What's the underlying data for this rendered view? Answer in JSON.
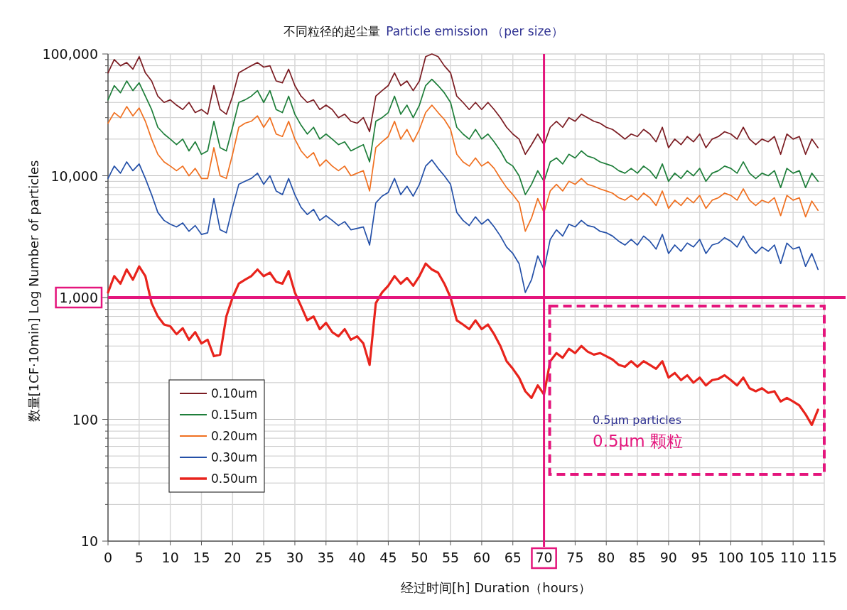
{
  "chart_data": {
    "type": "line",
    "title": "不同粒径的起尘量",
    "subtitle": "Particle emission （per size）",
    "xlabel": "经过时间[h] Duration（hours）",
    "ylabel": "数量[1CF·10min] Log Number of particles",
    "log": "y",
    "grid": true,
    "legend": "bottom left",
    "marker": "none",
    "line_style": "solid",
    "xlim": [
      0,
      115
    ],
    "xticks": [
      0,
      5,
      10,
      15,
      20,
      25,
      30,
      35,
      40,
      45,
      50,
      55,
      60,
      65,
      70,
      75,
      80,
      85,
      90,
      95,
      100,
      105,
      110,
      115
    ],
    "ylim": [
      10,
      100000
    ],
    "yticks": [
      10,
      100,
      {
        "value": 1000,
        "label": "1,000"
      },
      {
        "value": 10000,
        "label": "10,000"
      },
      {
        "value": 100000,
        "label": "100,000"
      }
    ],
    "x": [
      0,
      1,
      2,
      3,
      4,
      5,
      6,
      7,
      8,
      9,
      10,
      11,
      12,
      13,
      14,
      15,
      16,
      17,
      18,
      19,
      20,
      21,
      22,
      23,
      24,
      25,
      26,
      27,
      28,
      29,
      30,
      31,
      32,
      33,
      34,
      35,
      36,
      37,
      38,
      39,
      40,
      41,
      42,
      43,
      44,
      45,
      46,
      47,
      48,
      49,
      50,
      51,
      52,
      53,
      54,
      55,
      56,
      57,
      58,
      59,
      60,
      61,
      62,
      63,
      64,
      65,
      66,
      67,
      68,
      69,
      70,
      71,
      72,
      73,
      74,
      75,
      76,
      77,
      78,
      79,
      80,
      81,
      82,
      83,
      84,
      85,
      86,
      87,
      88,
      89,
      90,
      91,
      92,
      93,
      94,
      95,
      96,
      97,
      98,
      99,
      100,
      101,
      102,
      103,
      104,
      105,
      106,
      107,
      108,
      109,
      110,
      111,
      112,
      113,
      114
    ],
    "series": [
      {
        "name": "0.10um",
        "color": "#7b1c22",
        "values": [
          70000,
          90000,
          80000,
          85000,
          75000,
          95000,
          70000,
          60000,
          45000,
          40000,
          42000,
          38000,
          35000,
          40000,
          33000,
          35000,
          32000,
          55000,
          35000,
          32000,
          45000,
          70000,
          75000,
          80000,
          85000,
          78000,
          80000,
          60000,
          58000,
          75000,
          55000,
          45000,
          40000,
          42000,
          35000,
          38000,
          35000,
          30000,
          32000,
          28000,
          27000,
          30000,
          23000,
          45000,
          50000,
          55000,
          70000,
          55000,
          60000,
          50000,
          60000,
          95000,
          100000,
          95000,
          80000,
          70000,
          45000,
          40000,
          35000,
          40000,
          35000,
          40000,
          35000,
          30000,
          25000,
          22000,
          20000,
          15000,
          18000,
          22000,
          18000,
          25000,
          28000,
          25000,
          30000,
          28000,
          32000,
          30000,
          28000,
          27000,
          25000,
          24000,
          22000,
          20000,
          22000,
          21000,
          24000,
          22000,
          19000,
          25000,
          17000,
          20000,
          18000,
          21000,
          19000,
          22000,
          17000,
          20000,
          21000,
          23000,
          22000,
          20000,
          25000,
          20000,
          18000,
          20000,
          19000,
          21000,
          15000,
          22000,
          20000,
          21000,
          15000,
          20000,
          17000
        ]
      },
      {
        "name": "0.15um",
        "color": "#1e7e3a",
        "values": [
          42000,
          55000,
          48000,
          60000,
          50000,
          58000,
          45000,
          35000,
          25000,
          22000,
          20000,
          18000,
          20000,
          16000,
          19000,
          15000,
          16000,
          28000,
          17000,
          16000,
          25000,
          40000,
          42000,
          45000,
          50000,
          40000,
          50000,
          35000,
          33000,
          45000,
          32000,
          26000,
          22000,
          25000,
          20000,
          22000,
          20000,
          18000,
          19000,
          16000,
          17000,
          18000,
          13000,
          28000,
          30000,
          33000,
          45000,
          32000,
          38000,
          30000,
          38000,
          55000,
          62000,
          55000,
          48000,
          40000,
          25000,
          22000,
          20000,
          24000,
          20000,
          22000,
          19000,
          16000,
          13000,
          12000,
          10000,
          7000,
          8500,
          11000,
          9000,
          13000,
          14000,
          12500,
          15000,
          14000,
          16000,
          14500,
          14000,
          13000,
          12500,
          12000,
          11000,
          10500,
          11500,
          10500,
          12000,
          11000,
          9500,
          12500,
          9000,
          10500,
          9500,
          11000,
          10000,
          11500,
          9000,
          10500,
          11000,
          12000,
          11500,
          10500,
          13000,
          10500,
          9500,
          10500,
          10000,
          11000,
          8000,
          11500,
          10500,
          11000,
          8000,
          10500,
          9000
        ]
      },
      {
        "name": "0.20um",
        "color": "#f07020",
        "values": [
          27000,
          33000,
          30000,
          37000,
          31000,
          36000,
          28000,
          20000,
          15000,
          13000,
          12000,
          11000,
          12000,
          10000,
          11500,
          9500,
          9500,
          17000,
          10000,
          9500,
          15000,
          25000,
          27000,
          28000,
          31000,
          25000,
          30000,
          22000,
          21000,
          28000,
          20000,
          16000,
          14000,
          15500,
          12000,
          13500,
          12000,
          11000,
          12000,
          10000,
          10500,
          11000,
          7500,
          17000,
          19000,
          21000,
          28000,
          20000,
          24000,
          19000,
          24000,
          33000,
          38000,
          33000,
          29000,
          24000,
          15000,
          13000,
          12000,
          14000,
          12000,
          13000,
          11500,
          9500,
          8000,
          7000,
          6000,
          3500,
          4500,
          6500,
          5000,
          7500,
          8500,
          7500,
          9000,
          8500,
          9500,
          8500,
          8200,
          7800,
          7500,
          7200,
          6600,
          6300,
          6900,
          6300,
          7200,
          6600,
          5700,
          7500,
          5400,
          6300,
          5700,
          6600,
          6000,
          6900,
          5400,
          6300,
          6600,
          7200,
          6900,
          6300,
          7800,
          6300,
          5700,
          6300,
          6000,
          6600,
          4700,
          6900,
          6300,
          6600,
          4600,
          6200,
          5200
        ]
      },
      {
        "name": "0.30um",
        "color": "#2450a8",
        "values": [
          9500,
          12000,
          10500,
          13000,
          11000,
          12500,
          9500,
          7000,
          5000,
          4300,
          4000,
          3800,
          4100,
          3500,
          3900,
          3300,
          3400,
          6500,
          3600,
          3400,
          5500,
          8500,
          9000,
          9500,
          10500,
          8500,
          10000,
          7500,
          7000,
          9500,
          7000,
          5500,
          4800,
          5300,
          4300,
          4700,
          4300,
          3900,
          4200,
          3600,
          3700,
          3800,
          2700,
          6000,
          6800,
          7300,
          9500,
          7000,
          8200,
          6800,
          8500,
          12000,
          13500,
          11500,
          10000,
          8500,
          5000,
          4300,
          3900,
          4600,
          4000,
          4400,
          3800,
          3200,
          2600,
          2300,
          1900,
          1100,
          1400,
          2200,
          1700,
          3000,
          3600,
          3200,
          4000,
          3800,
          4300,
          3900,
          3800,
          3500,
          3400,
          3200,
          2900,
          2700,
          3000,
          2700,
          3200,
          2900,
          2500,
          3300,
          2300,
          2700,
          2400,
          2800,
          2600,
          3000,
          2300,
          2700,
          2800,
          3100,
          2900,
          2600,
          3200,
          2600,
          2300,
          2600,
          2400,
          2700,
          1900,
          2800,
          2500,
          2600,
          1800,
          2300,
          1700
        ]
      },
      {
        "name": "0.50um",
        "color": "#e8231c",
        "values": [
          1100,
          1500,
          1300,
          1700,
          1400,
          1800,
          1500,
          900,
          700,
          600,
          580,
          500,
          560,
          450,
          520,
          420,
          450,
          330,
          340,
          700,
          1000,
          1300,
          1400,
          1500,
          1700,
          1500,
          1600,
          1350,
          1300,
          1650,
          1100,
          850,
          650,
          700,
          550,
          620,
          520,
          480,
          550,
          450,
          480,
          420,
          280,
          900,
          1100,
          1250,
          1500,
          1300,
          1450,
          1250,
          1500,
          1900,
          1700,
          1600,
          1300,
          1000,
          650,
          600,
          550,
          650,
          550,
          600,
          500,
          400,
          300,
          260,
          220,
          170,
          150,
          190,
          160,
          300,
          350,
          320,
          380,
          350,
          400,
          360,
          340,
          350,
          330,
          310,
          280,
          270,
          300,
          270,
          300,
          280,
          260,
          300,
          220,
          240,
          210,
          230,
          200,
          220,
          190,
          210,
          215,
          230,
          210,
          190,
          220,
          180,
          170,
          180,
          165,
          170,
          140,
          150,
          140,
          130,
          110,
          90,
          120
        ]
      }
    ],
    "ref_lines": [
      {
        "axis": "y",
        "value": 1000,
        "color": "#e4157c"
      },
      {
        "axis": "x",
        "value": 70,
        "color": "#e4157c"
      }
    ],
    "annotations": [
      "0.5μm particles",
      "0.5μm 颗粒"
    ]
  }
}
